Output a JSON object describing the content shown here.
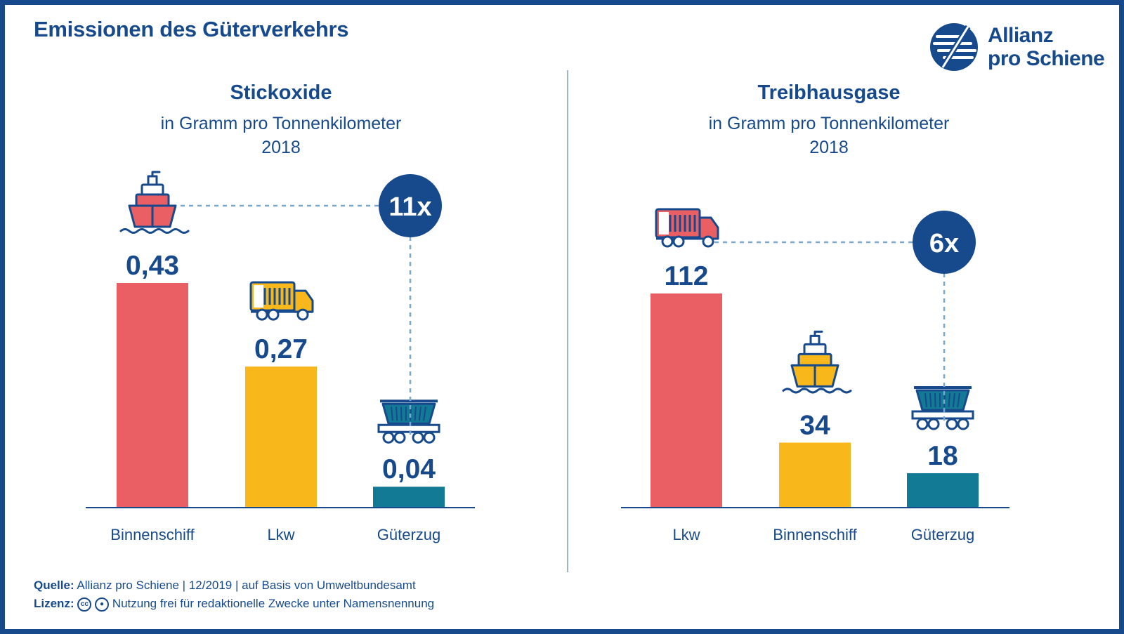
{
  "title": "Emissionen des Güterverkehrs",
  "logo": {
    "line1": "Allianz",
    "line2": "pro Schiene"
  },
  "colors": {
    "navy": "#174a8c",
    "red": "#e95f63",
    "yellow": "#f8b81c",
    "teal": "#137a95",
    "dash": "#7aa7d0"
  },
  "charts": [
    {
      "title": "Stickoxide",
      "subtitle": "in Gramm pro Tonnenkilometer",
      "year": "2018",
      "factor_label": "11x"
    },
    {
      "title": "Treibhausgase",
      "subtitle": "in Gramm pro Tonnenkilometer",
      "year": "2018",
      "factor_label": "6x"
    }
  ],
  "chart_data": [
    {
      "type": "bar",
      "title": "Stickoxide",
      "categories": [
        "Binnenschiff",
        "Lkw",
        "Güterzug"
      ],
      "values": [
        0.43,
        0.27,
        0.04
      ],
      "value_labels": [
        "0,43",
        "0,27",
        "0,04"
      ],
      "icons": [
        "ship-icon",
        "truck-icon",
        "freight-wagon-icon"
      ],
      "bar_colors": [
        "#e95f63",
        "#f8b81c",
        "#137a95"
      ],
      "ylim": [
        0,
        0.43
      ]
    },
    {
      "type": "bar",
      "title": "Treibhausgase",
      "categories": [
        "Lkw",
        "Binnenschiff",
        "Güterzug"
      ],
      "values": [
        112,
        34,
        18
      ],
      "value_labels": [
        "112",
        "34",
        "18"
      ],
      "icons": [
        "truck-icon",
        "ship-icon",
        "freight-wagon-icon"
      ],
      "bar_colors": [
        "#e95f63",
        "#f8b81c",
        "#137a95"
      ],
      "ylim": [
        0,
        112
      ]
    }
  ],
  "footer": {
    "source_label": "Quelle:",
    "source_text": "Allianz pro Schiene | 12/2019 | auf Basis von Umweltbundesamt",
    "license_label": "Lizenz:",
    "cc_label": "cc",
    "license_text": "Nutzung frei für redaktionelle Zwecke unter Namensnennung"
  }
}
